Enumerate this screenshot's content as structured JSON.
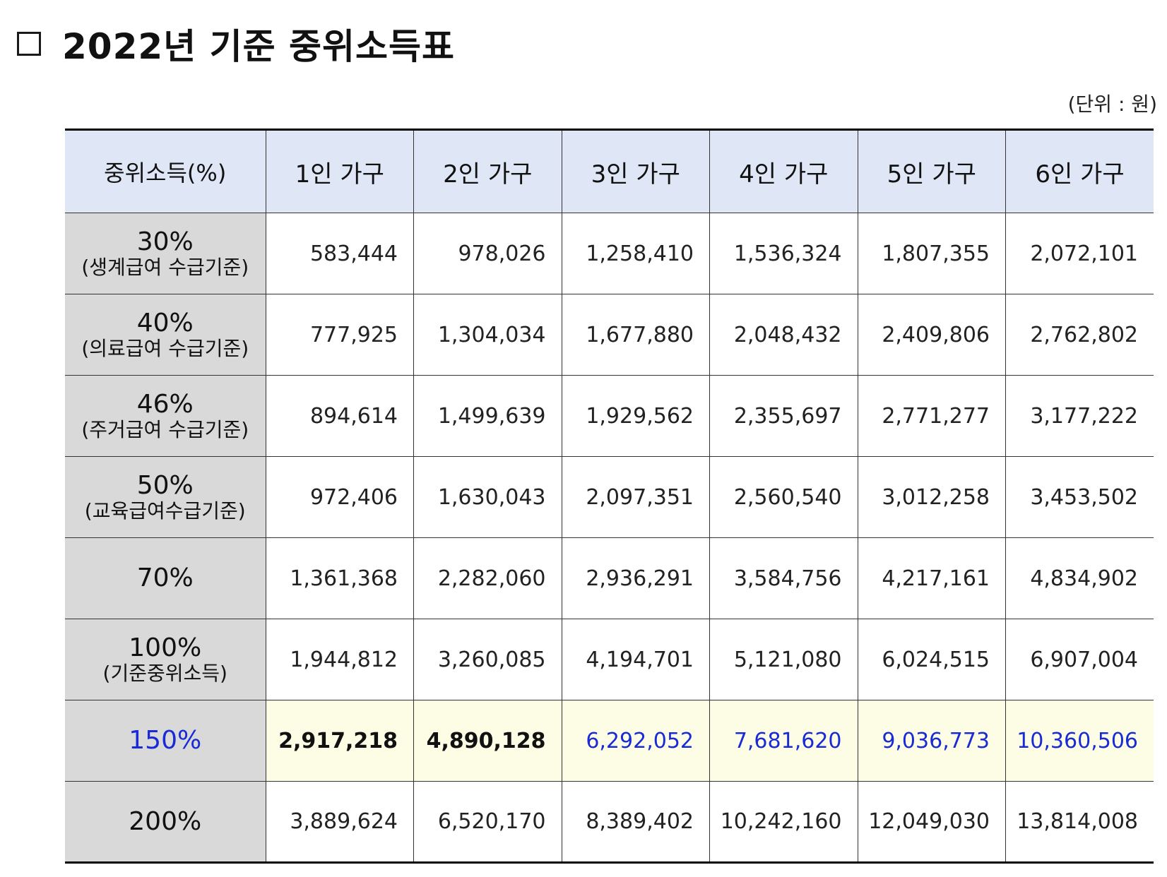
{
  "title": "2022년 기준 중위소득표",
  "unit": "(단위 : 원)",
  "table": {
    "headers": [
      "중위소득(%)",
      "1인 가구",
      "2인 가구",
      "3인 가구",
      "4인 가구",
      "5인 가구",
      "6인 가구"
    ],
    "rows": [
      {
        "pct": "30%",
        "sub": "(생계급여 수급기준)",
        "values": [
          "583,444",
          "978,026",
          "1,258,410",
          "1,536,324",
          "1,807,355",
          "2,072,101"
        ]
      },
      {
        "pct": "40%",
        "sub": "(의료급여 수급기준)",
        "values": [
          "777,925",
          "1,304,034",
          "1,677,880",
          "2,048,432",
          "2,409,806",
          "2,762,802"
        ]
      },
      {
        "pct": "46%",
        "sub": "(주거급여 수급기준)",
        "values": [
          "894,614",
          "1,499,639",
          "1,929,562",
          "2,355,697",
          "2,771,277",
          "3,177,222"
        ]
      },
      {
        "pct": "50%",
        "sub": "(교육급여수급기준)",
        "values": [
          "972,406",
          "1,630,043",
          "2,097,351",
          "2,560,540",
          "3,012,258",
          "3,453,502"
        ]
      },
      {
        "pct": "70%",
        "sub": "",
        "values": [
          "1,361,368",
          "2,282,060",
          "2,936,291",
          "3,584,756",
          "4,217,161",
          "4,834,902"
        ]
      },
      {
        "pct": "100%",
        "sub": "(기준중위소득)",
        "values": [
          "1,944,812",
          "3,260,085",
          "4,194,701",
          "5,121,080",
          "6,024,515",
          "6,907,004"
        ]
      },
      {
        "pct": "150%",
        "sub": "",
        "values": [
          "2,917,218",
          "4,890,128",
          "6,292,052",
          "7,681,620",
          "9,036,773",
          "10,360,506"
        ]
      },
      {
        "pct": "200%",
        "sub": "",
        "values": [
          "3,889,624",
          "6,520,170",
          "8,389,402",
          "10,242,160",
          "12,049,030",
          "13,814,008"
        ]
      }
    ]
  },
  "colors": {
    "header_bg": "#dfe6f6",
    "label_bg": "#d9d9d9",
    "highlight_bg": "#fdfde5",
    "highlight_text": "#1a2bd6"
  }
}
